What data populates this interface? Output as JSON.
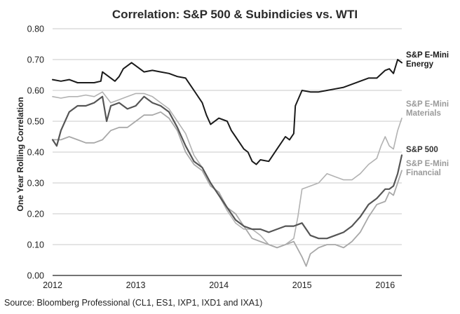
{
  "chart_data": {
    "type": "line",
    "title": "Correlation: S&P 500 & Subindicies vs. WTI",
    "ylabel": "One Year Rolling Correlation",
    "xlabel": "",
    "ylim": [
      0.0,
      0.8
    ],
    "xlim": [
      2012.0,
      2016.2
    ],
    "yticks": [
      "0.00",
      "0.10",
      "0.20",
      "0.30",
      "0.40",
      "0.50",
      "0.60",
      "0.70",
      "0.80"
    ],
    "xticks": [
      "2012",
      "2013",
      "2014",
      "2015",
      "2016"
    ],
    "grid": true,
    "series": [
      {
        "name": "S&P E-Mini Energy",
        "label_lines": [
          "S&P E-Mini",
          "Energy"
        ],
        "color": "#1a1a1a",
        "width": 2.0,
        "x": [
          2012.0,
          2012.1,
          2012.2,
          2012.3,
          2012.4,
          2012.5,
          2012.58,
          2012.6,
          2012.7,
          2012.75,
          2012.8,
          2012.85,
          2012.9,
          2012.95,
          2013.0,
          2013.1,
          2013.2,
          2013.3,
          2013.4,
          2013.5,
          2013.6,
          2013.7,
          2013.8,
          2013.85,
          2013.9,
          2014.0,
          2014.1,
          2014.15,
          2014.2,
          2014.3,
          2014.35,
          2014.4,
          2014.45,
          2014.5,
          2014.6,
          2014.7,
          2014.8,
          2014.85,
          2014.9,
          2014.92,
          2015.0,
          2015.1,
          2015.2,
          2015.3,
          2015.4,
          2015.5,
          2015.6,
          2015.7,
          2015.8,
          2015.9,
          2016.0,
          2016.05,
          2016.1,
          2016.15,
          2016.2
        ],
        "values": [
          0.635,
          0.63,
          0.635,
          0.625,
          0.625,
          0.625,
          0.63,
          0.66,
          0.64,
          0.63,
          0.645,
          0.67,
          0.68,
          0.69,
          0.68,
          0.66,
          0.665,
          0.66,
          0.655,
          0.645,
          0.64,
          0.6,
          0.56,
          0.52,
          0.49,
          0.51,
          0.5,
          0.47,
          0.45,
          0.41,
          0.4,
          0.37,
          0.36,
          0.375,
          0.37,
          0.41,
          0.45,
          0.44,
          0.46,
          0.55,
          0.6,
          0.595,
          0.595,
          0.6,
          0.605,
          0.61,
          0.62,
          0.63,
          0.64,
          0.64,
          0.665,
          0.67,
          0.655,
          0.7,
          0.69
        ]
      },
      {
        "name": "S&P E-Mini Materials",
        "label_lines": [
          "S&P E-Mini",
          "Materials"
        ],
        "color": "#b2b2b2",
        "width": 1.6,
        "x": [
          2012.0,
          2012.1,
          2012.2,
          2012.3,
          2012.4,
          2012.5,
          2012.6,
          2012.7,
          2012.8,
          2012.9,
          2013.0,
          2013.1,
          2013.2,
          2013.3,
          2013.4,
          2013.5,
          2013.6,
          2013.7,
          2013.8,
          2013.9,
          2014.0,
          2014.1,
          2014.2,
          2014.3,
          2014.4,
          2014.5,
          2014.6,
          2014.7,
          2014.8,
          2014.9,
          2014.95,
          2015.0,
          2015.1,
          2015.2,
          2015.3,
          2015.4,
          2015.5,
          2015.6,
          2015.7,
          2015.8,
          2015.9,
          2015.95,
          2016.0,
          2016.05,
          2016.1,
          2016.15,
          2016.2
        ],
        "values": [
          0.58,
          0.575,
          0.58,
          0.58,
          0.585,
          0.58,
          0.595,
          0.56,
          0.57,
          0.58,
          0.59,
          0.59,
          0.58,
          0.56,
          0.54,
          0.5,
          0.46,
          0.39,
          0.35,
          0.3,
          0.26,
          0.21,
          0.17,
          0.15,
          0.15,
          0.13,
          0.1,
          0.09,
          0.1,
          0.12,
          0.19,
          0.28,
          0.29,
          0.3,
          0.33,
          0.32,
          0.31,
          0.31,
          0.33,
          0.36,
          0.38,
          0.42,
          0.45,
          0.42,
          0.41,
          0.47,
          0.51
        ]
      },
      {
        "name": "S&P 500",
        "label_lines": [
          "S&P 500"
        ],
        "color": "#555555",
        "width": 2.2,
        "x": [
          2012.0,
          2012.05,
          2012.1,
          2012.2,
          2012.3,
          2012.4,
          2012.5,
          2012.6,
          2012.65,
          2012.7,
          2012.8,
          2012.9,
          2013.0,
          2013.1,
          2013.2,
          2013.3,
          2013.4,
          2013.5,
          2013.6,
          2013.7,
          2013.8,
          2013.9,
          2014.0,
          2014.1,
          2014.2,
          2014.3,
          2014.4,
          2014.5,
          2014.6,
          2014.7,
          2014.8,
          2014.9,
          2015.0,
          2015.1,
          2015.2,
          2015.3,
          2015.4,
          2015.5,
          2015.6,
          2015.7,
          2015.8,
          2015.9,
          2016.0,
          2016.05,
          2016.1,
          2016.15,
          2016.2
        ],
        "values": [
          0.44,
          0.42,
          0.47,
          0.53,
          0.55,
          0.55,
          0.56,
          0.58,
          0.5,
          0.55,
          0.56,
          0.54,
          0.55,
          0.58,
          0.56,
          0.55,
          0.53,
          0.48,
          0.42,
          0.37,
          0.35,
          0.3,
          0.26,
          0.22,
          0.18,
          0.16,
          0.15,
          0.15,
          0.14,
          0.15,
          0.16,
          0.16,
          0.17,
          0.13,
          0.12,
          0.12,
          0.13,
          0.14,
          0.16,
          0.19,
          0.23,
          0.25,
          0.28,
          0.28,
          0.29,
          0.33,
          0.39
        ]
      },
      {
        "name": "S&P E-Mini Financial",
        "label_lines": [
          "S&P E-Mini",
          "Financial"
        ],
        "color": "#a8a8a8",
        "width": 1.8,
        "x": [
          2012.0,
          2012.1,
          2012.2,
          2012.3,
          2012.4,
          2012.5,
          2012.6,
          2012.7,
          2012.8,
          2012.9,
          2013.0,
          2013.1,
          2013.2,
          2013.3,
          2013.4,
          2013.5,
          2013.6,
          2013.7,
          2013.8,
          2013.9,
          2014.0,
          2014.1,
          2014.2,
          2014.3,
          2014.4,
          2014.5,
          2014.6,
          2014.7,
          2014.8,
          2014.9,
          2015.0,
          2015.05,
          2015.1,
          2015.2,
          2015.3,
          2015.4,
          2015.5,
          2015.6,
          2015.7,
          2015.8,
          2015.9,
          2016.0,
          2016.05,
          2016.1,
          2016.15,
          2016.2
        ],
        "values": [
          0.44,
          0.44,
          0.45,
          0.44,
          0.43,
          0.43,
          0.44,
          0.47,
          0.48,
          0.48,
          0.5,
          0.52,
          0.52,
          0.53,
          0.51,
          0.47,
          0.4,
          0.36,
          0.34,
          0.29,
          0.27,
          0.22,
          0.2,
          0.16,
          0.12,
          0.11,
          0.1,
          0.09,
          0.1,
          0.11,
          0.06,
          0.03,
          0.07,
          0.09,
          0.1,
          0.1,
          0.09,
          0.11,
          0.14,
          0.19,
          0.23,
          0.24,
          0.27,
          0.26,
          0.3,
          0.34
        ]
      }
    ]
  },
  "source": "Source: Bloomberg Professional (CL1, ES1, IXP1, IXD1 and IXA1)"
}
